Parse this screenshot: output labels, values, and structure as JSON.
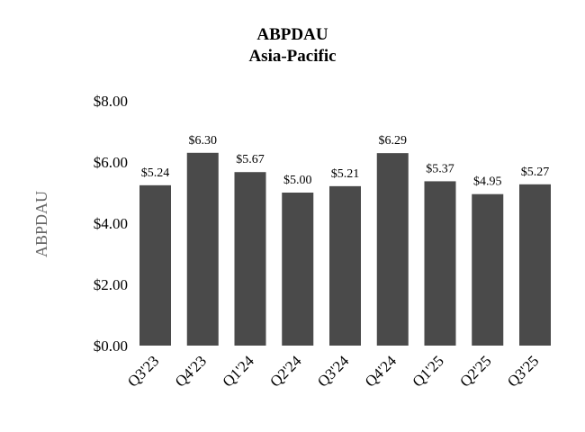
{
  "chart_data": {
    "type": "bar",
    "title": "ABPDAU",
    "subtitle": "Asia-Pacific",
    "ylabel": "ABPDAU",
    "xlabel": "",
    "categories": [
      "Q3'23",
      "Q4'23",
      "Q1'24",
      "Q2'24",
      "Q3'24",
      "Q4'24",
      "Q1'25",
      "Q2'25",
      "Q3'25"
    ],
    "values": [
      5.24,
      6.3,
      5.67,
      5.0,
      5.21,
      6.29,
      5.37,
      4.95,
      5.27
    ],
    "value_labels": [
      "$5.24",
      "$6.30",
      "$5.67",
      "$5.00",
      "$5.21",
      "$6.29",
      "$5.37",
      "$4.95",
      "$5.27"
    ],
    "ylim": [
      0,
      8
    ],
    "yticks": [
      0,
      2,
      4,
      6,
      8
    ],
    "ytick_labels": [
      "$0.00",
      "$2.00",
      "$4.00",
      "$6.00",
      "$8.00"
    ],
    "grid": false,
    "legend": "none",
    "bar_color": "#4a4a4a"
  }
}
